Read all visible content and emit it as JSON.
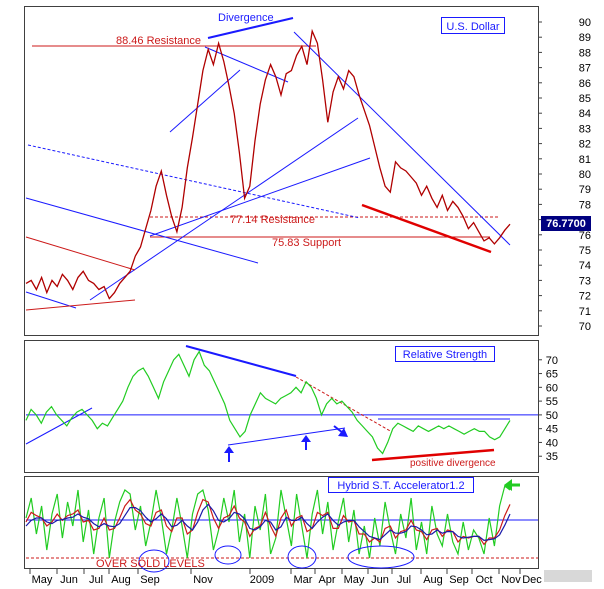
{
  "chart_data": [
    {
      "type": "line",
      "title": "U.S. Dollar",
      "ylim": [
        70,
        90
      ],
      "y_ticks": [
        70,
        71,
        72,
        73,
        74,
        75,
        76,
        77,
        78,
        79,
        80,
        81,
        82,
        83,
        84,
        85,
        86,
        87,
        88,
        89,
        90
      ],
      "last_value": "76.7700",
      "series": [
        {
          "values": [
            72.8,
            73.0,
            72.4,
            73.2,
            72.2,
            73.0,
            72.6,
            73.4,
            73.0,
            72.4,
            73.2,
            73.6,
            73.0,
            72.8,
            72.4,
            72.6,
            71.8,
            72.2,
            72.8,
            73.2,
            73.6,
            74.6,
            75.2,
            76.4,
            77.6,
            79.2,
            80.2,
            78.6,
            77.2,
            76.2,
            77.8,
            80.4,
            82.4,
            84.6,
            86.8,
            88.2,
            87.2,
            88.6,
            87.4,
            85.8,
            84.0,
            81.4,
            78.4,
            79.2,
            82.2,
            84.6,
            86.2,
            87.2,
            86.4,
            85.2,
            86.6,
            86.8,
            87.8,
            88.4,
            87.2,
            89.4,
            88.6,
            86.2,
            83.4,
            85.4,
            86.4,
            85.6,
            86.8,
            86.4,
            85.2,
            84.2,
            83.2,
            81.8,
            80.4,
            79.2,
            78.8,
            80.8,
            80.4,
            80.2,
            79.8,
            79.4,
            78.6,
            79.2,
            78.4,
            77.8,
            78.6,
            77.6,
            78.2,
            77.8,
            77.2,
            76.4,
            76.8,
            76.2,
            75.6,
            75.8,
            75.4,
            75.8,
            76.3,
            76.7
          ],
          "color": "#b00000"
        }
      ],
      "annotations": [
        {
          "text": "Divergence",
          "color": "#1a1aff"
        },
        {
          "text": "88.46 Resistance",
          "color": "#cc1a1a",
          "level": 88.46
        },
        {
          "text": "77.14 Resistance",
          "color": "#cc1a1a",
          "level": 77.14
        },
        {
          "text": "75.83 Support",
          "color": "#cc1a1a",
          "level": 75.83
        }
      ]
    },
    {
      "type": "line",
      "title": "Relative Strength",
      "ylim": [
        30,
        75
      ],
      "y_ticks": [
        35,
        40,
        45,
        50,
        55,
        60,
        65,
        70
      ],
      "reference_level": 50,
      "series": [
        {
          "values": [
            48,
            52,
            50,
            47,
            51,
            53,
            50,
            48,
            46,
            49,
            51,
            52,
            50,
            48,
            45,
            47,
            46,
            49,
            52,
            55,
            60,
            64,
            66,
            67,
            64,
            60,
            56,
            62,
            66,
            70,
            72,
            68,
            64,
            70,
            73,
            68,
            66,
            62,
            58,
            54,
            48,
            45,
            42,
            44,
            50,
            54,
            58,
            56,
            55,
            54,
            56,
            57,
            58,
            60,
            58,
            62,
            60,
            56,
            50,
            54,
            56,
            54,
            55,
            53,
            51,
            48,
            46,
            44,
            42,
            38,
            36,
            40,
            45,
            47,
            46,
            45,
            44,
            46,
            45,
            44,
            45,
            46,
            45,
            46,
            45,
            44,
            43,
            44,
            45,
            44,
            44,
            42,
            41,
            42,
            45,
            48
          ],
          "color": "#22cc22"
        }
      ],
      "annotations": [
        {
          "text": "positive divergence",
          "color": "#cc1a1a"
        }
      ]
    },
    {
      "type": "line",
      "title": "Hybrid S.T. Accelerator1.2",
      "oversold_label": "OVER SOLD LEVELS",
      "series": [
        {
          "values": [
            0.55,
            0.8,
            0.35,
            0.7,
            0.15,
            0.6,
            0.85,
            0.3,
            0.75,
            0.45,
            0.9,
            0.25,
            0.65,
            0.1,
            0.55,
            0.8,
            0.05,
            0.5,
            0.75,
            0.9,
            0.85,
            0.4,
            0.7,
            0.2,
            0.5,
            0.9,
            0.55,
            0.1,
            0.4,
            0.8,
            0.45,
            0.05,
            0.6,
            0.85,
            0.9,
            0.65,
            0.15,
            0.4,
            0.8,
            0.5,
            0.9,
            0.25,
            0.6,
            0.05,
            0.7,
            0.4,
            0.85,
            0.1,
            0.3,
            0.9,
            0.55,
            0.2,
            0.85,
            0.45,
            0.05,
            0.6,
            0.9,
            0.35,
            0.75,
            0.15,
            0.5,
            0.8,
            0.25,
            0.65,
            0.1,
            0.45,
            0.05,
            0.55,
            0.2,
            0.75,
            0.4,
            0.1,
            0.6,
            0.3,
            0.8,
            0.15,
            0.5,
            0.1,
            0.7,
            0.35,
            0.2,
            0.6,
            0.25,
            0.1,
            0.5,
            0.15,
            0.4,
            0.3,
            0.1,
            0.55,
            0.2,
            0.7,
            0.95,
            0.9
          ],
          "color": "#22cc22"
        },
        {
          "values": [
            0.5,
            0.62,
            0.58,
            0.55,
            0.45,
            0.5,
            0.6,
            0.52,
            0.58,
            0.6,
            0.65,
            0.5,
            0.52,
            0.4,
            0.42,
            0.55,
            0.4,
            0.42,
            0.55,
            0.7,
            0.78,
            0.65,
            0.6,
            0.48,
            0.45,
            0.62,
            0.65,
            0.45,
            0.38,
            0.55,
            0.55,
            0.35,
            0.4,
            0.62,
            0.78,
            0.75,
            0.55,
            0.42,
            0.55,
            0.58,
            0.7,
            0.55,
            0.5,
            0.32,
            0.42,
            0.45,
            0.62,
            0.45,
            0.32,
            0.55,
            0.65,
            0.45,
            0.55,
            0.58,
            0.38,
            0.42,
            0.62,
            0.58,
            0.62,
            0.42,
            0.42,
            0.58,
            0.5,
            0.52,
            0.35,
            0.35,
            0.25,
            0.3,
            0.25,
            0.42,
            0.45,
            0.3,
            0.38,
            0.4,
            0.52,
            0.4,
            0.38,
            0.28,
            0.4,
            0.42,
            0.32,
            0.4,
            0.38,
            0.25,
            0.32,
            0.3,
            0.32,
            0.32,
            0.22,
            0.3,
            0.3,
            0.4,
            0.58,
            0.72
          ],
          "color": "#cc1a1a"
        },
        {
          "values": [
            0.45,
            0.52,
            0.55,
            0.55,
            0.5,
            0.48,
            0.52,
            0.53,
            0.55,
            0.56,
            0.6,
            0.56,
            0.54,
            0.48,
            0.44,
            0.48,
            0.45,
            0.44,
            0.48,
            0.58,
            0.68,
            0.68,
            0.64,
            0.56,
            0.5,
            0.54,
            0.6,
            0.54,
            0.44,
            0.46,
            0.52,
            0.45,
            0.4,
            0.5,
            0.65,
            0.72,
            0.64,
            0.52,
            0.5,
            0.54,
            0.62,
            0.6,
            0.54,
            0.42,
            0.4,
            0.44,
            0.52,
            0.5,
            0.4,
            0.44,
            0.56,
            0.52,
            0.52,
            0.56,
            0.48,
            0.42,
            0.5,
            0.56,
            0.6,
            0.52,
            0.46,
            0.5,
            0.52,
            0.52,
            0.44,
            0.38,
            0.32,
            0.3,
            0.28,
            0.34,
            0.4,
            0.36,
            0.36,
            0.38,
            0.45,
            0.44,
            0.4,
            0.34,
            0.35,
            0.4,
            0.36,
            0.38,
            0.38,
            0.32,
            0.3,
            0.31,
            0.32,
            0.32,
            0.27,
            0.28,
            0.29,
            0.34,
            0.46,
            0.6
          ],
          "color": "#1a1aaa"
        }
      ]
    }
  ],
  "x_axis": {
    "labels": [
      "May",
      "Jun",
      "Jul",
      "Aug",
      "Sep",
      "Nov",
      "2009",
      "Mar",
      "Apr",
      "May",
      "Jun",
      "Jul",
      "Aug",
      "Sep",
      "Oct",
      "Nov",
      "Dec"
    ]
  },
  "colors": {
    "price_box_bg": "#000080",
    "grid_line": "#1a1aff",
    "trend_red": "#e00000",
    "trend_blue": "#1a1aff",
    "arrow_green": "#22cc22"
  }
}
